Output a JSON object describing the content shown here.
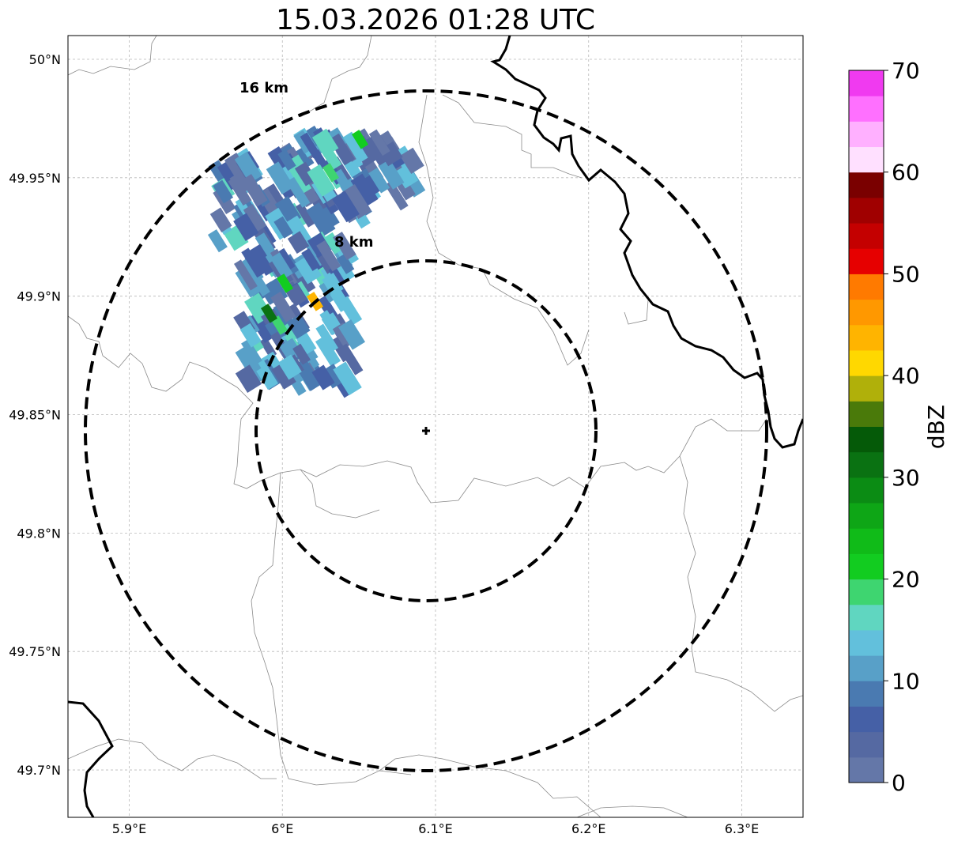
{
  "title": "15.03.2026 01:28 UTC",
  "map": {
    "extent": {
      "lon_min": 5.86,
      "lon_max": 6.34,
      "lat_min": 49.68,
      "lat_max": 50.01
    },
    "x_ticks": [
      {
        "value": 5.9,
        "label": "5.9°E"
      },
      {
        "value": 6.0,
        "label": "6°E"
      },
      {
        "value": 6.1,
        "label": "6.1°E"
      },
      {
        "value": 6.2,
        "label": "6.2°E"
      },
      {
        "value": 6.3,
        "label": "6.3°E"
      }
    ],
    "y_ticks": [
      {
        "value": 50.0,
        "label": "50°N"
      },
      {
        "value": 49.95,
        "label": "49.95°N"
      },
      {
        "value": 49.9,
        "label": "49.9°N"
      },
      {
        "value": 49.85,
        "label": "49.85°N"
      },
      {
        "value": 49.8,
        "label": "49.8°N"
      },
      {
        "value": 49.75,
        "label": "49.75°N"
      },
      {
        "value": 49.7,
        "label": "49.7°N"
      }
    ],
    "gridlines": true,
    "radar_site": {
      "lon": 6.095,
      "lat": 49.843,
      "marker": "plus"
    },
    "range_rings": [
      {
        "radius_km": 8,
        "label": "8 km"
      },
      {
        "radius_km": 16,
        "label": "16 km"
      }
    ]
  },
  "colorbar": {
    "label": "dBZ",
    "min": 0,
    "max": 70,
    "ticks": [
      {
        "value": 0,
        "label": "0"
      },
      {
        "value": 10,
        "label": "10"
      },
      {
        "value": 20,
        "label": "20"
      },
      {
        "value": 30,
        "label": "30"
      },
      {
        "value": 40,
        "label": "40"
      },
      {
        "value": 50,
        "label": "50"
      },
      {
        "value": 60,
        "label": "60"
      },
      {
        "value": 70,
        "label": "70"
      }
    ],
    "colors": [
      "#6477a8",
      "#5569a2",
      "#4560a6",
      "#4a7ab1",
      "#58a0c8",
      "#62c0dc",
      "#60d6c0",
      "#3ed570",
      "#12cc20",
      "#10bb18",
      "#0ea616",
      "#0b8c14",
      "#0a7212",
      "#055a08",
      "#4a7a0a",
      "#b0b00a",
      "#ffd800",
      "#ffb400",
      "#ff9800",
      "#ff7a00",
      "#e60000",
      "#c40000",
      "#a00000",
      "#7a0000",
      "#ffe0ff",
      "#ffb0ff",
      "#ff70ff",
      "#f03af0"
    ]
  }
}
